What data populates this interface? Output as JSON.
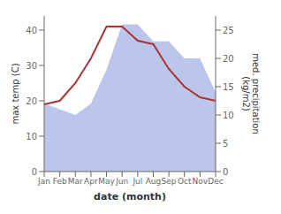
{
  "chart_data": {
    "type": "line",
    "categories": [
      "Jan",
      "Feb",
      "Mar",
      "Apr",
      "May",
      "Jun",
      "Jul",
      "Aug",
      "Sep",
      "Oct",
      "Nov",
      "Dec"
    ],
    "series": [
      {
        "type": "area",
        "axis": "y2",
        "color": "#b0bce8",
        "values": [
          12,
          11,
          10,
          12,
          18,
          26,
          26,
          23,
          23,
          20,
          20,
          14
        ]
      },
      {
        "type": "line",
        "color": "#aa3333",
        "values": [
          19,
          20,
          25,
          32,
          41,
          41,
          37,
          36,
          29,
          24,
          21,
          20
        ]
      }
    ],
    "xlabel": "date (month)",
    "ylabel": "max temp (C)",
    "y2label": "med. precipitation\n(kg/m2)",
    "ylim": [
      0,
      44
    ],
    "yticks": [
      0,
      10,
      20,
      30,
      40
    ],
    "y2lim": [
      0,
      27.5
    ],
    "y2ticks": [
      0,
      5,
      10,
      15,
      20,
      25
    ],
    "grid": false
  }
}
